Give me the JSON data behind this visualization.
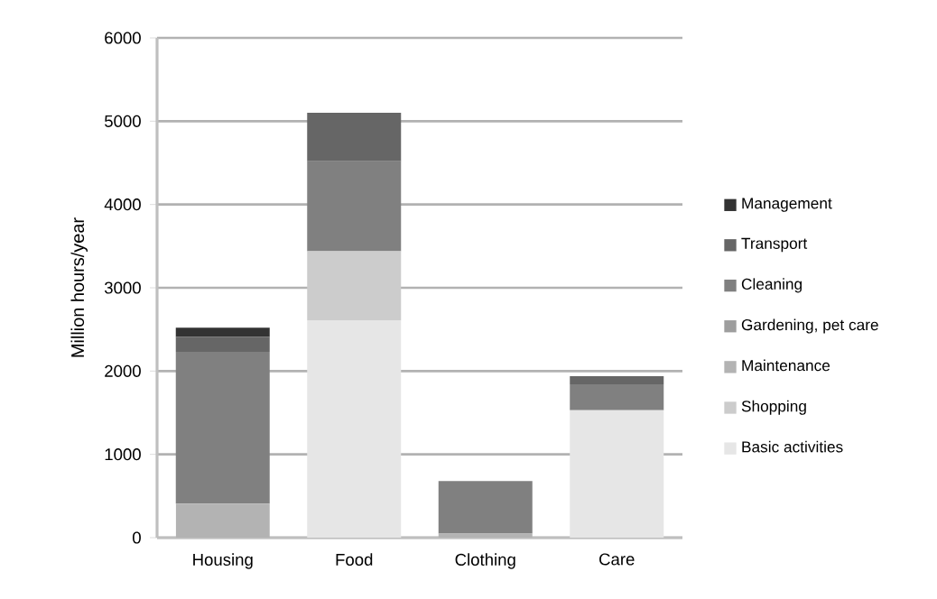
{
  "chart_data": {
    "type": "bar",
    "stacked": true,
    "ylabel": "Million hours/year",
    "categories": [
      "Housing",
      "Food",
      "Clothing",
      "Care"
    ],
    "series": [
      {
        "name": "Basic activities",
        "color": "#e6e6e6",
        "values": [
          null,
          2610,
          null,
          1530
        ]
      },
      {
        "name": "Shopping",
        "color": "#cccccc",
        "values": [
          null,
          830,
          null,
          null
        ]
      },
      {
        "name": "Maintenance",
        "color": "#b3b3b3",
        "values": [
          410,
          null,
          50,
          null
        ]
      },
      {
        "name": "Gardening, pet care",
        "color": "#9e9e9e",
        "values": [
          null,
          null,
          null,
          null
        ]
      },
      {
        "name": "Cleaning",
        "color": "#808080",
        "values": [
          1820,
          1080,
          630,
          310
        ]
      },
      {
        "name": "Transport",
        "color": "#666666",
        "values": [
          180,
          580,
          null,
          100
        ]
      },
      {
        "name": "Management",
        "color": "#333333",
        "values": [
          110,
          null,
          null,
          null
        ]
      }
    ],
    "ylim": [
      0,
      6000
    ],
    "yticks": [
      0,
      1000,
      2000,
      3000,
      4000,
      5000,
      6000
    ],
    "grid": "y",
    "legend": "right"
  }
}
